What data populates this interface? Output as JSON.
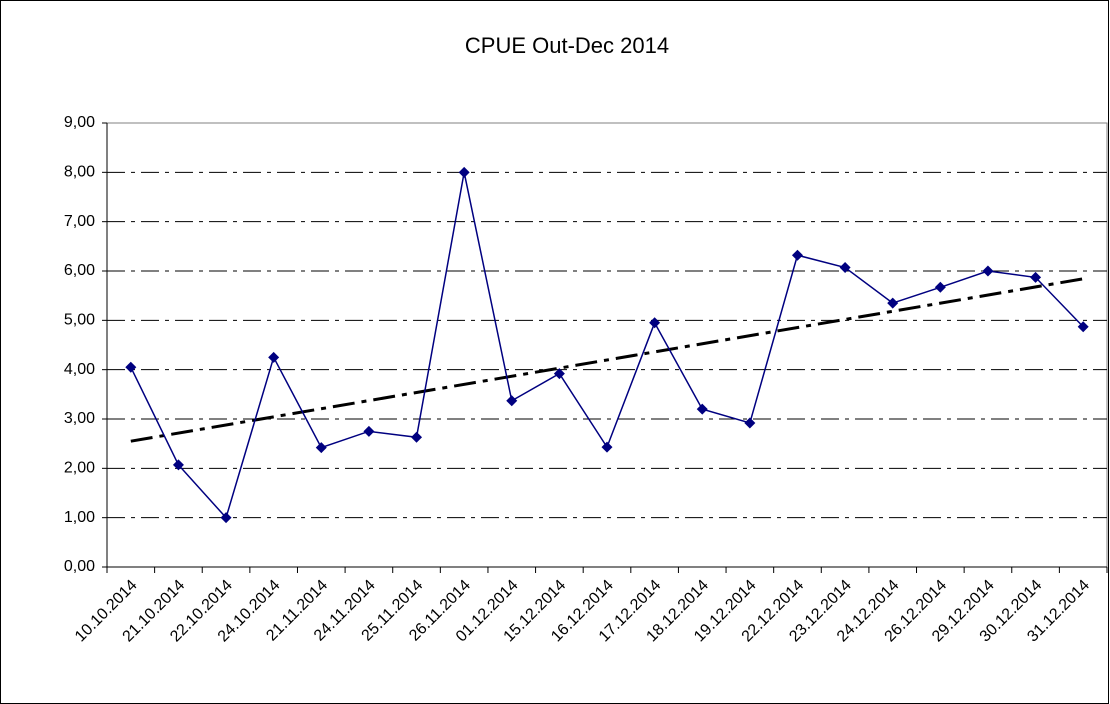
{
  "chart_data": {
    "type": "line",
    "title": "CPUE Out-Dec 2014",
    "categories": [
      "10.10.2014",
      "21.10.2014",
      "22.10.2014",
      "24.10.2014",
      "21.11.2014",
      "24.11.2014",
      "25.11.2014",
      "26.11.2014",
      "01.12.2014",
      "15.12.2014",
      "16.12.2014",
      "17.12.2014",
      "18.12.2014",
      "19.12.2014",
      "22.12.2014",
      "23.12.2014",
      "24.12.2014",
      "26.12.2014",
      "29.12.2014",
      "30.12.2014",
      "31.12.2014"
    ],
    "values": [
      4.05,
      2.07,
      1.0,
      4.25,
      2.42,
      2.75,
      2.63,
      8.0,
      3.37,
      3.92,
      2.43,
      4.95,
      3.2,
      2.92,
      6.32,
      6.07,
      5.35,
      5.67,
      6.0,
      5.87,
      4.87
    ],
    "color": "#000080",
    "trendline": "linear",
    "ylim": [
      0,
      9
    ],
    "yticks": [
      {
        "value": 0,
        "label": "0,00"
      },
      {
        "value": 1,
        "label": "1,00"
      },
      {
        "value": 2,
        "label": "2,00"
      },
      {
        "value": 3,
        "label": "3,00"
      },
      {
        "value": 4,
        "label": "4,00"
      },
      {
        "value": 5,
        "label": "5,00"
      },
      {
        "value": 6,
        "label": "6,00"
      },
      {
        "value": 7,
        "label": "7,00"
      },
      {
        "value": 8,
        "label": "8,00"
      },
      {
        "value": 9,
        "label": "9,00"
      }
    ],
    "grid": true
  }
}
